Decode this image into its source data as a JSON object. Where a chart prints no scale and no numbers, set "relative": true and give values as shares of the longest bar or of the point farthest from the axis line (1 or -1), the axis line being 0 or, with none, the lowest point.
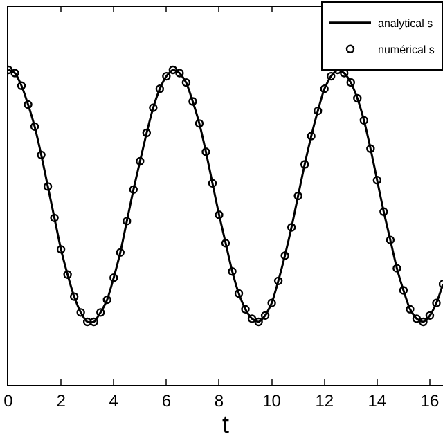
{
  "chart_data": {
    "type": "line",
    "xlabel": "t",
    "relative": true,
    "legend": "top right",
    "grid": false,
    "xlim": [
      0,
      16.5
    ],
    "xticks": [
      0,
      2,
      4,
      6,
      8,
      10,
      12,
      14,
      16
    ],
    "x": [
      0,
      0.25,
      0.5,
      0.75,
      1,
      1.25,
      1.5,
      1.75,
      2,
      2.25,
      2.5,
      2.75,
      3,
      3.25,
      3.5,
      3.75,
      4,
      4.25,
      4.5,
      4.75,
      5,
      5.25,
      5.5,
      5.75,
      6,
      6.25,
      6.5,
      6.75,
      7,
      7.25,
      7.5,
      7.75,
      8,
      8.25,
      8.5,
      8.75,
      9,
      9.25,
      9.5,
      9.75,
      10,
      10.25,
      10.5,
      10.75,
      11,
      11.25,
      11.5,
      11.75,
      12,
      12.25,
      12.5,
      12.75,
      13,
      13.25,
      13.5,
      13.75,
      14,
      14.25,
      14.5,
      14.75,
      15,
      15.25,
      15.5,
      15.75,
      16,
      16.25,
      16.5
    ],
    "series": [
      {
        "name": "analytical s",
        "marker": "none",
        "line_style": "solid",
        "color": "#000000",
        "values": [
          1.0,
          0.99,
          0.95,
          0.89,
          0.82,
          0.73,
          0.63,
          0.53,
          0.43,
          0.35,
          0.28,
          0.23,
          0.2,
          0.2,
          0.23,
          0.27,
          0.34,
          0.42,
          0.52,
          0.62,
          0.71,
          0.8,
          0.88,
          0.94,
          0.98,
          1.0,
          0.99,
          0.96,
          0.9,
          0.83,
          0.74,
          0.64,
          0.54,
          0.45,
          0.36,
          0.29,
          0.24,
          0.21,
          0.2,
          0.22,
          0.26,
          0.33,
          0.41,
          0.5,
          0.6,
          0.7,
          0.79,
          0.87,
          0.94,
          0.98,
          1.0,
          0.99,
          0.96,
          0.91,
          0.84,
          0.75,
          0.65,
          0.55,
          0.46,
          0.37,
          0.3,
          0.24,
          0.21,
          0.2,
          0.22,
          0.26,
          0.32
        ]
      },
      {
        "name": "numérical s",
        "type": "scatter",
        "marker": "circle",
        "color": "#000000",
        "values": [
          1.0,
          0.99,
          0.95,
          0.89,
          0.82,
          0.73,
          0.63,
          0.53,
          0.43,
          0.35,
          0.28,
          0.23,
          0.2,
          0.2,
          0.23,
          0.27,
          0.34,
          0.42,
          0.52,
          0.62,
          0.71,
          0.8,
          0.88,
          0.94,
          0.98,
          1.0,
          0.99,
          0.96,
          0.9,
          0.83,
          0.74,
          0.64,
          0.54,
          0.45,
          0.36,
          0.29,
          0.24,
          0.21,
          0.2,
          0.22,
          0.26,
          0.33,
          0.41,
          0.5,
          0.6,
          0.7,
          0.79,
          0.87,
          0.94,
          0.98,
          1.0,
          0.99,
          0.96,
          0.91,
          0.84,
          0.75,
          0.65,
          0.55,
          0.46,
          0.37,
          0.3,
          0.24,
          0.21,
          0.2,
          0.22,
          0.26,
          0.32
        ]
      }
    ]
  }
}
